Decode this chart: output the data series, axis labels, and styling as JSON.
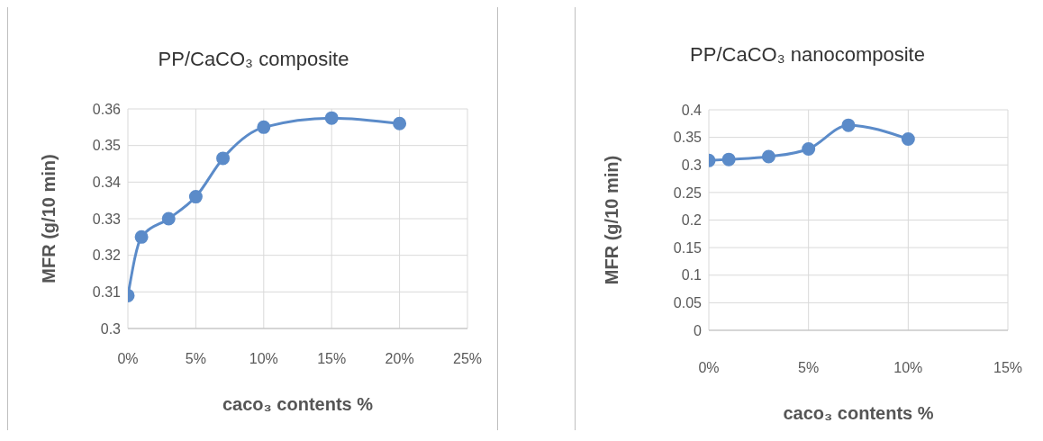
{
  "chart_data": [
    {
      "type": "line",
      "title": "PP/CaCO₃ composite",
      "xlabel": "caco₃ contents %",
      "ylabel": "MFR (g/10 min)",
      "x": [
        0,
        1,
        3,
        5,
        7,
        10,
        15,
        20
      ],
      "series": [
        {
          "color": "#5b8bc9",
          "values": [
            0.309,
            0.325,
            0.33,
            0.336,
            0.3465,
            0.355,
            0.3575,
            0.356
          ]
        }
      ],
      "xlim": [
        0,
        25
      ],
      "xticks": [
        {
          "value": 0,
          "label": "0%"
        },
        {
          "value": 5,
          "label": "5%"
        },
        {
          "value": 10,
          "label": "10%"
        },
        {
          "value": 15,
          "label": "15%"
        },
        {
          "value": 20,
          "label": "20%"
        },
        {
          "value": 25,
          "label": "25%"
        }
      ],
      "ylim": [
        0.3,
        0.36
      ],
      "yticks": [
        0.3,
        0.31,
        0.32,
        0.33,
        0.34,
        0.35,
        0.36
      ],
      "grid": true,
      "marker": "circle",
      "legend": false
    },
    {
      "type": "line",
      "title": "PP/CaCO₃ nanocomposite",
      "xlabel": "caco₃ contents %",
      "ylabel": "MFR (g/10 min)",
      "x": [
        0,
        1,
        3,
        5,
        7,
        10
      ],
      "series": [
        {
          "color": "#5b8bc9",
          "values": [
            0.308,
            0.31,
            0.315,
            0.329,
            0.372,
            0.347
          ]
        }
      ],
      "xlim": [
        0,
        15
      ],
      "xticks": [
        {
          "value": 0,
          "label": "0%"
        },
        {
          "value": 5,
          "label": "5%"
        },
        {
          "value": 10,
          "label": "10%"
        },
        {
          "value": 15,
          "label": "15%"
        }
      ],
      "ylim": [
        0,
        0.4
      ],
      "yticks": [
        0,
        0.05,
        0.1,
        0.15,
        0.2,
        0.25,
        0.3,
        0.35,
        0.4
      ],
      "grid": true,
      "marker": "circle",
      "legend": false
    }
  ]
}
